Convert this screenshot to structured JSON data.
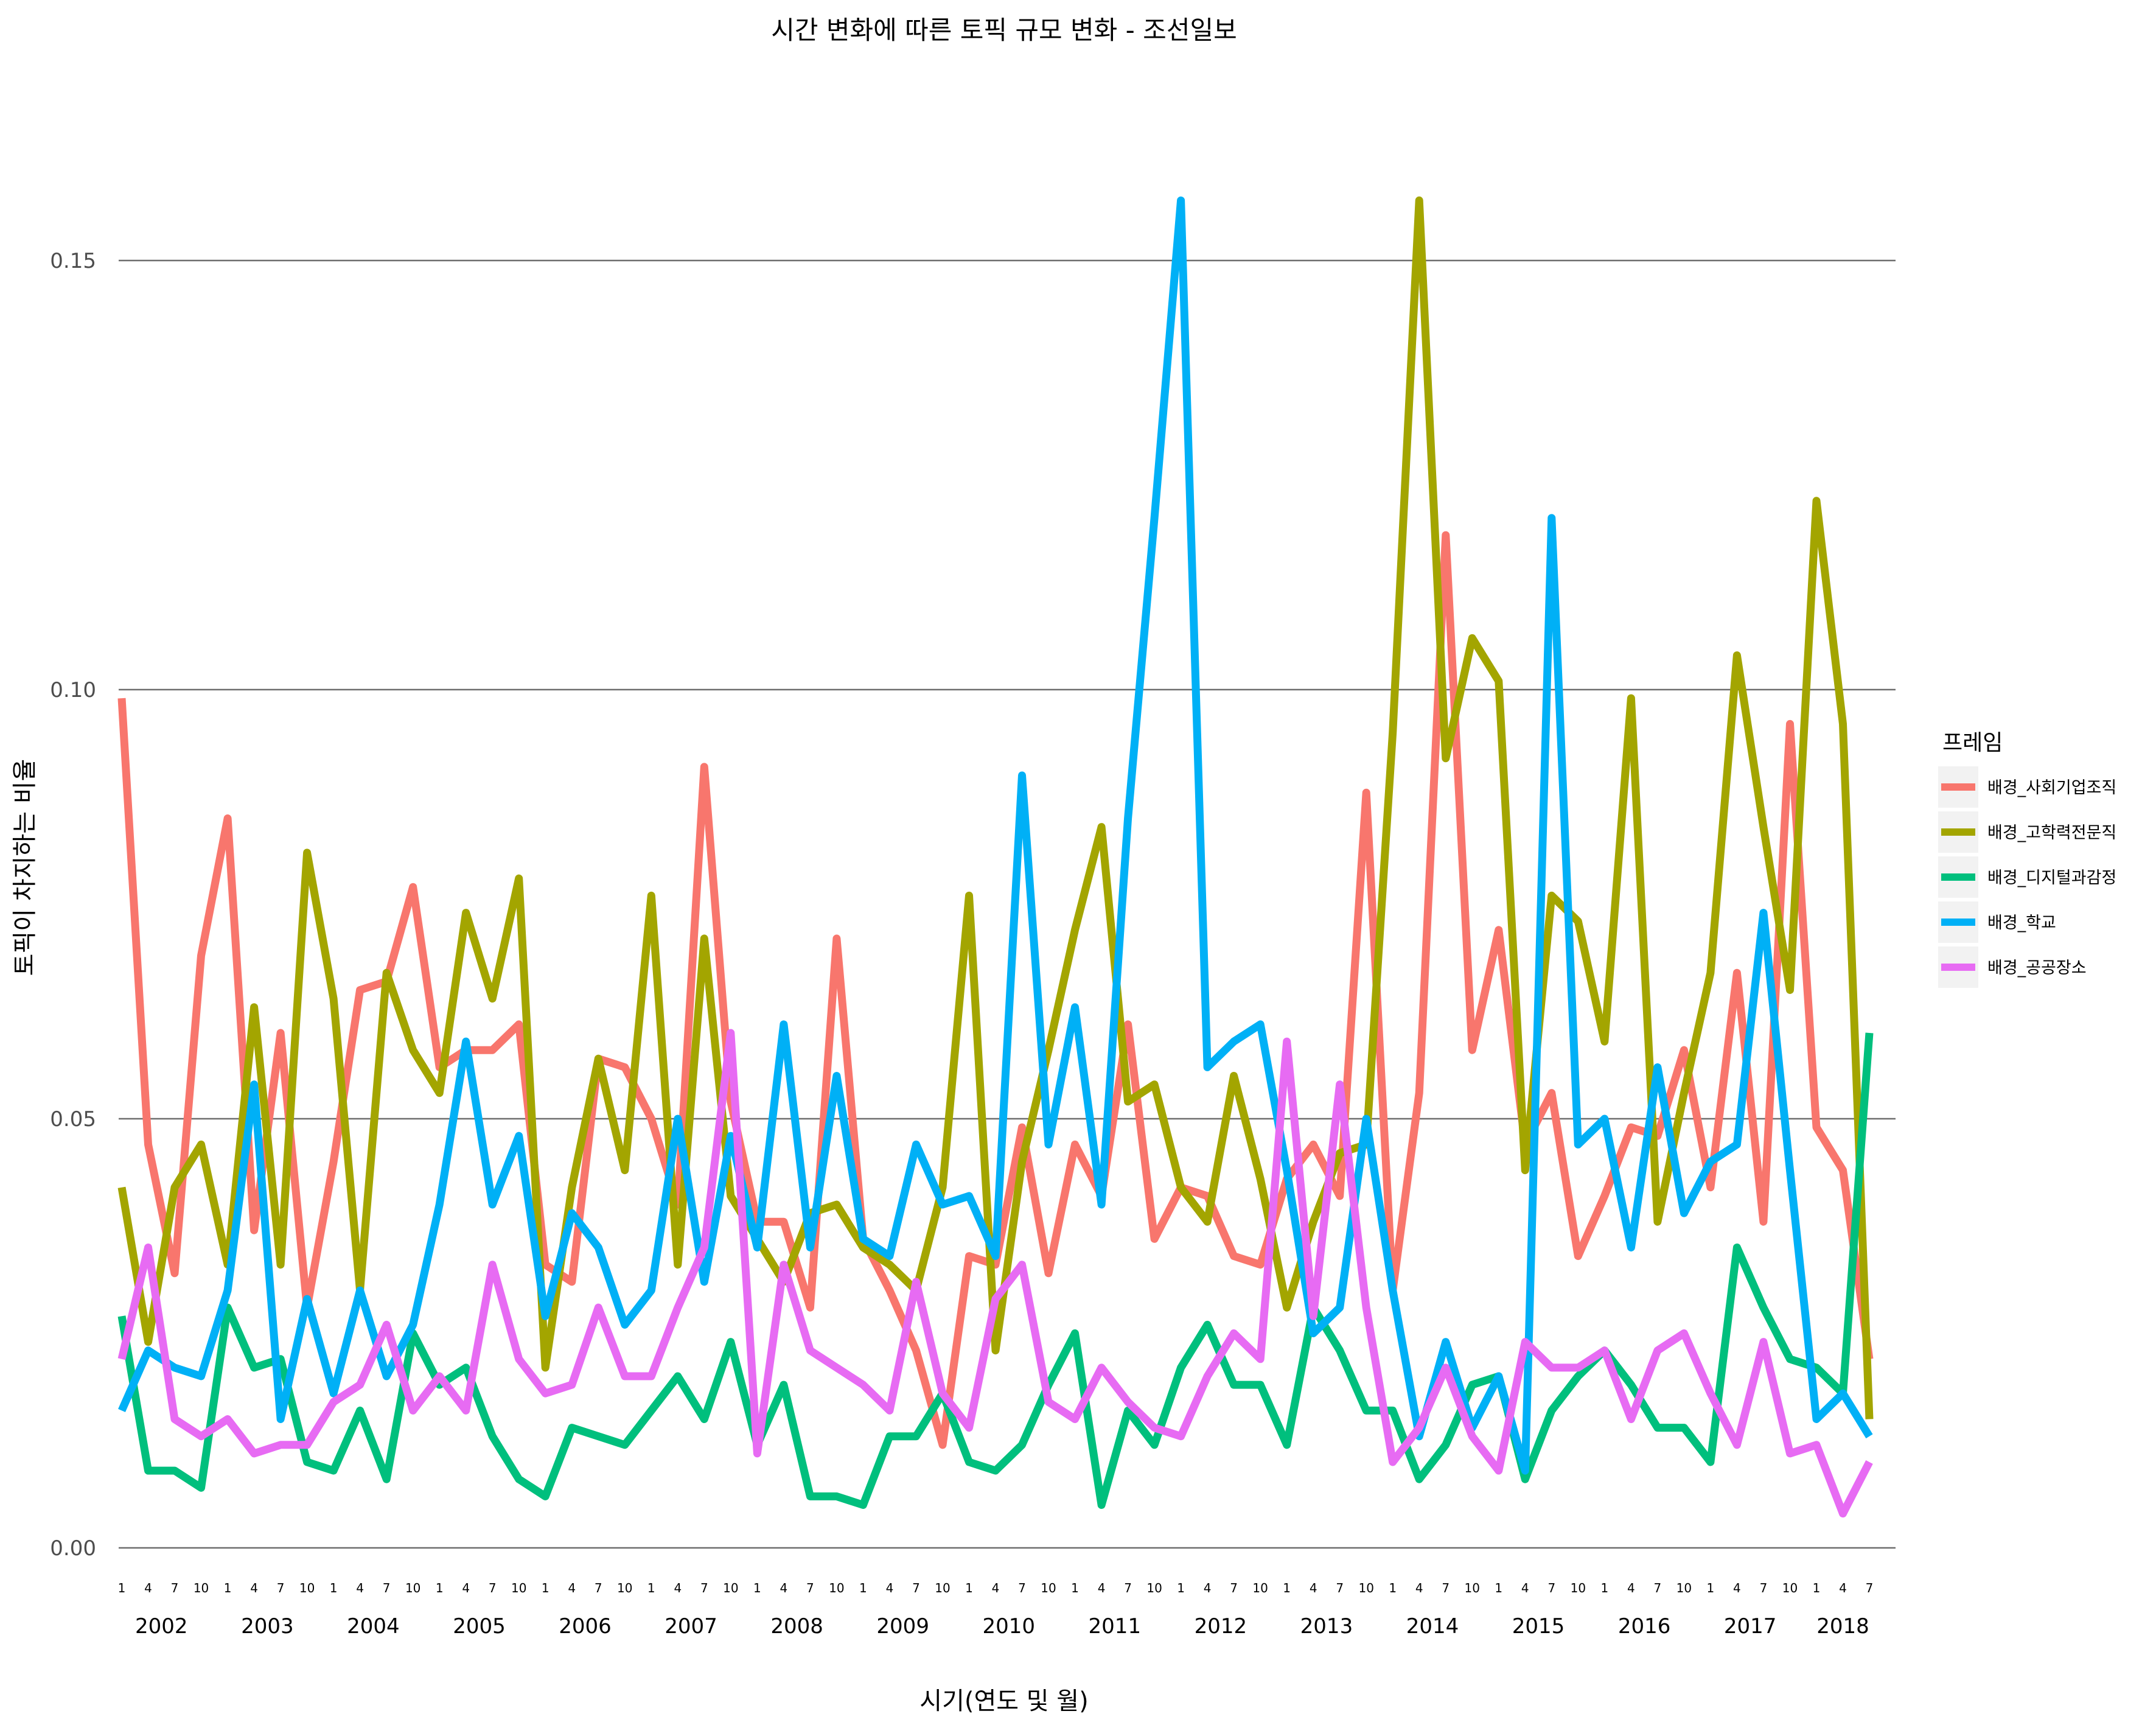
{
  "chart_data": {
    "type": "line",
    "title": "시간 변화에 따른 토픽 규모 변화 - 조선일보",
    "xlabel": "시기(연도 및 월)",
    "ylabel": "토픽이 차지하는 비율",
    "ylim": [
      0,
      0.165
    ],
    "yticks": [
      0.0,
      0.05,
      0.1,
      0.15
    ],
    "ytick_labels": [
      "0.00",
      "0.05",
      "0.10",
      "0.15"
    ],
    "grid": "horizontal major lines",
    "legend_title": "프레임",
    "legend_position": "right",
    "month_labels": [
      "1",
      "4",
      "7",
      "10"
    ],
    "years": [
      "2002",
      "2003",
      "2004",
      "2005",
      "2006",
      "2007",
      "2008",
      "2009",
      "2010",
      "2011",
      "2012",
      "2013",
      "2014",
      "2015",
      "2016",
      "2017",
      "2018"
    ],
    "x_start": "2002-01",
    "x_end": "2018-04",
    "x_step_months": 3,
    "series": [
      {
        "name": "배경_사회기업조직",
        "color": "#F8766D",
        "values": [
          0.099,
          0.047,
          0.032,
          0.069,
          0.085,
          0.037,
          0.06,
          0.028,
          0.045,
          0.065,
          0.066,
          0.077,
          0.056,
          0.058,
          0.058,
          0.061,
          0.033,
          0.031,
          0.057,
          0.056,
          0.05,
          0.04,
          0.091,
          0.052,
          0.038,
          0.038,
          0.028,
          0.071,
          0.036,
          0.03,
          0.023,
          0.012,
          0.034,
          0.033,
          0.049,
          0.032,
          0.047,
          0.041,
          0.061,
          0.036,
          0.042,
          0.041,
          0.034,
          0.033,
          0.043,
          0.047,
          0.041,
          0.088,
          0.03,
          0.053,
          0.118,
          0.058,
          0.072,
          0.047,
          0.053,
          0.034,
          0.041,
          0.049,
          0.048,
          0.058,
          0.042,
          0.067,
          0.038,
          0.096,
          0.049,
          0.044,
          0.022
        ]
      },
      {
        "name": "배경_고학력전문직",
        "color": "#A3A500",
        "values": [
          0.042,
          0.024,
          0.042,
          0.047,
          0.033,
          0.063,
          0.033,
          0.081,
          0.064,
          0.03,
          0.067,
          0.058,
          0.053,
          0.074,
          0.064,
          0.078,
          0.021,
          0.042,
          0.057,
          0.044,
          0.076,
          0.033,
          0.071,
          0.041,
          0.036,
          0.031,
          0.039,
          0.04,
          0.035,
          0.033,
          0.03,
          0.042,
          0.076,
          0.023,
          0.045,
          0.058,
          0.072,
          0.084,
          0.052,
          0.054,
          0.042,
          0.038,
          0.055,
          0.043,
          0.028,
          0.038,
          0.046,
          0.047,
          0.095,
          0.157,
          0.092,
          0.106,
          0.101,
          0.044,
          0.076,
          0.073,
          0.059,
          0.099,
          0.038,
          0.053,
          0.067,
          0.104,
          0.084,
          0.065,
          0.122,
          0.096,
          0.015
        ]
      },
      {
        "name": "배경_디지털과감정",
        "color": "#00BF7D",
        "values": [
          0.027,
          0.009,
          0.009,
          0.007,
          0.028,
          0.021,
          0.022,
          0.01,
          0.009,
          0.016,
          0.008,
          0.025,
          0.019,
          0.021,
          0.013,
          0.008,
          0.006,
          0.014,
          0.013,
          0.012,
          0.016,
          0.02,
          0.015,
          0.024,
          0.012,
          0.019,
          0.006,
          0.006,
          0.005,
          0.013,
          0.013,
          0.018,
          0.01,
          0.009,
          0.012,
          0.019,
          0.025,
          0.005,
          0.016,
          0.012,
          0.021,
          0.026,
          0.019,
          0.019,
          0.012,
          0.028,
          0.023,
          0.016,
          0.016,
          0.008,
          0.012,
          0.019,
          0.02,
          0.008,
          0.016,
          0.02,
          0.023,
          0.019,
          0.014,
          0.014,
          0.01,
          0.035,
          0.028,
          0.022,
          0.021,
          0.018,
          0.06
        ]
      },
      {
        "name": "배경_학교",
        "color": "#00B0F6",
        "values": [
          0.016,
          0.023,
          0.021,
          0.02,
          0.03,
          0.054,
          0.015,
          0.029,
          0.018,
          0.03,
          0.02,
          0.026,
          0.04,
          0.059,
          0.04,
          0.048,
          0.027,
          0.039,
          0.035,
          0.026,
          0.03,
          0.05,
          0.031,
          0.048,
          0.035,
          0.061,
          0.035,
          0.055,
          0.036,
          0.034,
          0.047,
          0.04,
          0.041,
          0.034,
          0.09,
          0.047,
          0.063,
          0.04,
          0.085,
          0.12,
          0.157,
          0.056,
          0.059,
          0.061,
          0.044,
          0.025,
          0.028,
          0.05,
          0.03,
          0.013,
          0.024,
          0.014,
          0.02,
          0.009,
          0.12,
          0.047,
          0.05,
          0.035,
          0.056,
          0.039,
          0.045,
          0.047,
          0.074,
          0.044,
          0.015,
          0.018,
          0.013
        ]
      },
      {
        "name": "배경_공공장소",
        "color": "#E76BF3",
        "values": [
          0.022,
          0.035,
          0.015,
          0.013,
          0.015,
          0.011,
          0.012,
          0.012,
          0.017,
          0.019,
          0.026,
          0.016,
          0.02,
          0.016,
          0.033,
          0.022,
          0.018,
          0.019,
          0.028,
          0.02,
          0.02,
          0.028,
          0.035,
          0.06,
          0.011,
          0.033,
          0.023,
          0.021,
          0.019,
          0.016,
          0.031,
          0.018,
          0.014,
          0.029,
          0.033,
          0.017,
          0.015,
          0.021,
          0.017,
          0.014,
          0.013,
          0.02,
          0.025,
          0.022,
          0.059,
          0.027,
          0.054,
          0.028,
          0.01,
          0.014,
          0.021,
          0.013,
          0.009,
          0.024,
          0.021,
          0.021,
          0.023,
          0.015,
          0.023,
          0.025,
          0.018,
          0.012,
          0.024,
          0.011,
          0.012,
          0.004,
          0.01
        ]
      }
    ]
  }
}
